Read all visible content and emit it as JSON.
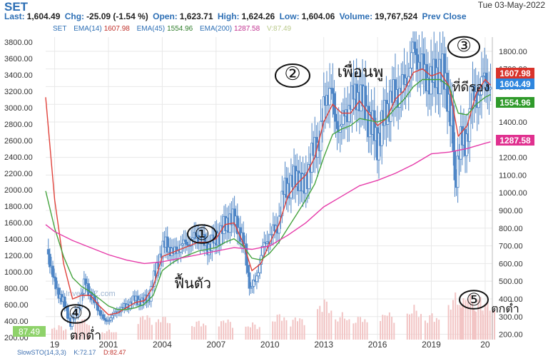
{
  "header": {
    "symbol": "SET",
    "date": "Tue 03-May-2022",
    "last_label": "Last:",
    "last_value": "1,604.49",
    "chg_label": "Chg:",
    "chg_value": "-25.09 (-1.54 %)",
    "open_label": "Open:",
    "open_value": "1,623.71",
    "high_label": "High:",
    "high_value": "1,624.26",
    "low_label": "Low:",
    "low_value": "1,604.06",
    "volume_label": "Volume:",
    "volume_value": "19,767,524",
    "prev_label": "Prev Close"
  },
  "legend": {
    "symbol": "SET",
    "ema14": "EMA(14)",
    "ema14_value": "1607.98",
    "ema45": "EMA(45)",
    "ema45_value": "1554.96",
    "ema200": "EMA(200)",
    "ema200_value": "1287.58",
    "v_value": "V:87.49"
  },
  "footer": {
    "slow": "SlowSTO(14,3,3)",
    "k": "K:72.17",
    "d": "D:82.47"
  },
  "watermark": "InvestorZ.com",
  "colors": {
    "candles": "#4f86c6",
    "ema14": "#e0413a",
    "ema45": "#45a33e",
    "ema200": "#e63ba9",
    "volume": "#f2c4c4",
    "grid": "#e8e8e8",
    "text": "#333333",
    "accent": "#2d6fb5",
    "ink": "#111111",
    "stoch_fill": "#88cc44"
  },
  "chart_data": {
    "type": "candlestick",
    "title": "SET",
    "left_axis": {
      "ticks": [
        3800,
        3600,
        3400,
        3200,
        3000,
        2800,
        2600,
        2400,
        2200,
        2000,
        1800,
        1600,
        1400,
        1200,
        1000,
        800,
        600,
        400,
        200
      ],
      "tick_labels": [
        "3800.00",
        "3600.00",
        "3400.00",
        "3200.00",
        "3000.00",
        "2800.00",
        "2600.00",
        "2400.00",
        "2200.00",
        "2000.00",
        "1800.00",
        "1600.00",
        "1400.00",
        "1200.00",
        "1000.00",
        "800.00",
        "600.00",
        "400.00",
        "200.00"
      ],
      "note": "EMA(45) scale"
    },
    "right_axis": {
      "ticks": [
        1800,
        1700,
        1600,
        1500,
        1400,
        1300,
        1200,
        1100,
        1000,
        900,
        800,
        700,
        600,
        500,
        400,
        300,
        200
      ],
      "tick_labels": [
        "1800.00",
        "1700.00",
        "1600.00",
        "1500.00",
        "1400.00",
        "1300.00",
        "1200.00",
        "1100.00",
        "1000.00",
        "900.00",
        "800.00",
        "700.00",
        "600.00",
        "500.00",
        "400.00",
        "300.00",
        "200.00"
      ],
      "range": [
        170,
        1880
      ]
    },
    "x_ticks": [
      "1998",
      "2001",
      "2004",
      "2007",
      "2010",
      "2013",
      "2016",
      "2019",
      "2022"
    ],
    "x_tick_labels": [
      "19",
      "2001",
      "2004",
      "2007",
      "2010",
      "2013",
      "2016",
      "2019",
      "20"
    ],
    "x_range": [
      1997.5,
      2022.4
    ],
    "price_badges": [
      {
        "label": "1607.98",
        "value": 1607.98,
        "series": "EMA(14)"
      },
      {
        "label": "1604.49",
        "value": 1604.49,
        "series": "Last"
      },
      {
        "label": "1554.96",
        "value": 1554.96,
        "series": "EMA(45)"
      },
      {
        "label": "1287.58",
        "value": 1287.58,
        "series": "EMA(200)"
      }
    ],
    "v_badge": "87.49",
    "price_path": [
      [
        1997.6,
        680
      ],
      [
        1998.0,
        480
      ],
      [
        1998.5,
        380
      ],
      [
        1998.9,
        260
      ],
      [
        1999.3,
        340
      ],
      [
        1999.7,
        500
      ],
      [
        2000.0,
        420
      ],
      [
        2000.4,
        350
      ],
      [
        2000.8,
        270
      ],
      [
        2001.2,
        300
      ],
      [
        2001.6,
        340
      ],
      [
        2002.0,
        360
      ],
      [
        2002.5,
        400
      ],
      [
        2002.9,
        380
      ],
      [
        2003.3,
        420
      ],
      [
        2003.8,
        620
      ],
      [
        2004.2,
        720
      ],
      [
        2004.6,
        650
      ],
      [
        2005.0,
        700
      ],
      [
        2005.5,
        720
      ],
      [
        2006.0,
        760
      ],
      [
        2006.5,
        690
      ],
      [
        2006.9,
        730
      ],
      [
        2007.3,
        780
      ],
      [
        2007.8,
        860
      ],
      [
        2008.2,
        820
      ],
      [
        2008.6,
        680
      ],
      [
        2008.9,
        450
      ],
      [
        2009.2,
        500
      ],
      [
        2009.6,
        680
      ],
      [
        2010.0,
        760
      ],
      [
        2010.4,
        800
      ],
      [
        2010.8,
        1020
      ],
      [
        2011.2,
        1050
      ],
      [
        2011.6,
        1100
      ],
      [
        2011.9,
        1010
      ],
      [
        2012.3,
        1200
      ],
      [
        2012.7,
        1280
      ],
      [
        2013.1,
        1520
      ],
      [
        2013.4,
        1620
      ],
      [
        2013.6,
        1400
      ],
      [
        2014.0,
        1380
      ],
      [
        2014.5,
        1520
      ],
      [
        2015.0,
        1560
      ],
      [
        2015.6,
        1400
      ],
      [
        2016.0,
        1280
      ],
      [
        2016.5,
        1470
      ],
      [
        2017.0,
        1560
      ],
      [
        2017.5,
        1600
      ],
      [
        2018.0,
        1800
      ],
      [
        2018.3,
        1760
      ],
      [
        2018.7,
        1650
      ],
      [
        2019.1,
        1640
      ],
      [
        2019.5,
        1700
      ],
      [
        2019.9,
        1580
      ],
      [
        2020.2,
        1350
      ],
      [
        2020.3,
        1000
      ],
      [
        2020.6,
        1320
      ],
      [
        2020.9,
        1250
      ],
      [
        2021.2,
        1500
      ],
      [
        2021.6,
        1560
      ],
      [
        2022.0,
        1650
      ],
      [
        2022.3,
        1604
      ]
    ],
    "series": [
      {
        "name": "EMA(14)",
        "points": [
          [
            1997.5,
            1540
          ],
          [
            1998.0,
            960
          ],
          [
            1998.5,
            600
          ],
          [
            1999.0,
            400
          ],
          [
            1999.5,
            420
          ],
          [
            2000.0,
            420
          ],
          [
            2000.5,
            360
          ],
          [
            2001.0,
            310
          ],
          [
            2001.5,
            320
          ],
          [
            2002.0,
            350
          ],
          [
            2002.5,
            380
          ],
          [
            2003.0,
            390
          ],
          [
            2003.5,
            470
          ],
          [
            2004.0,
            640
          ],
          [
            2004.5,
            660
          ],
          [
            2005.0,
            680
          ],
          [
            2005.5,
            700
          ],
          [
            2006.0,
            720
          ],
          [
            2006.5,
            720
          ],
          [
            2007.0,
            740
          ],
          [
            2007.5,
            820
          ],
          [
            2008.0,
            830
          ],
          [
            2008.5,
            720
          ],
          [
            2009.0,
            560
          ],
          [
            2009.5,
            600
          ],
          [
            2010.0,
            720
          ],
          [
            2010.5,
            820
          ],
          [
            2011.0,
            980
          ],
          [
            2011.5,
            1050
          ],
          [
            2012.0,
            1100
          ],
          [
            2012.5,
            1200
          ],
          [
            2013.0,
            1400
          ],
          [
            2013.5,
            1500
          ],
          [
            2014.0,
            1450
          ],
          [
            2014.5,
            1450
          ],
          [
            2015.0,
            1520
          ],
          [
            2015.5,
            1450
          ],
          [
            2016.0,
            1380
          ],
          [
            2016.5,
            1420
          ],
          [
            2017.0,
            1530
          ],
          [
            2017.5,
            1580
          ],
          [
            2018.0,
            1680
          ],
          [
            2018.5,
            1700
          ],
          [
            2019.0,
            1660
          ],
          [
            2019.5,
            1680
          ],
          [
            2020.0,
            1600
          ],
          [
            2020.5,
            1320
          ],
          [
            2021.0,
            1380
          ],
          [
            2021.5,
            1560
          ],
          [
            2022.0,
            1640
          ],
          [
            2022.3,
            1608
          ]
        ]
      },
      {
        "name": "EMA(45)",
        "points": [
          [
            1997.5,
            1010
          ],
          [
            1998.0,
            800
          ],
          [
            1998.5,
            640
          ],
          [
            1999.0,
            520
          ],
          [
            1999.5,
            470
          ],
          [
            2000.0,
            440
          ],
          [
            2000.5,
            400
          ],
          [
            2001.0,
            360
          ],
          [
            2001.5,
            340
          ],
          [
            2002.0,
            340
          ],
          [
            2002.5,
            350
          ],
          [
            2003.0,
            370
          ],
          [
            2003.5,
            420
          ],
          [
            2004.0,
            560
          ],
          [
            2004.5,
            600
          ],
          [
            2005.0,
            630
          ],
          [
            2005.5,
            650
          ],
          [
            2006.0,
            670
          ],
          [
            2006.5,
            680
          ],
          [
            2007.0,
            690
          ],
          [
            2007.5,
            720
          ],
          [
            2008.0,
            740
          ],
          [
            2008.5,
            700
          ],
          [
            2009.0,
            630
          ],
          [
            2009.5,
            620
          ],
          [
            2010.0,
            660
          ],
          [
            2010.5,
            720
          ],
          [
            2011.0,
            800
          ],
          [
            2011.5,
            880
          ],
          [
            2012.0,
            960
          ],
          [
            2012.5,
            1050
          ],
          [
            2013.0,
            1200
          ],
          [
            2013.5,
            1330
          ],
          [
            2014.0,
            1360
          ],
          [
            2014.5,
            1380
          ],
          [
            2015.0,
            1420
          ],
          [
            2015.5,
            1410
          ],
          [
            2016.0,
            1400
          ],
          [
            2016.5,
            1420
          ],
          [
            2017.0,
            1480
          ],
          [
            2017.5,
            1530
          ],
          [
            2018.0,
            1600
          ],
          [
            2018.5,
            1640
          ],
          [
            2019.0,
            1640
          ],
          [
            2019.5,
            1640
          ],
          [
            2020.0,
            1600
          ],
          [
            2020.5,
            1450
          ],
          [
            2021.0,
            1440
          ],
          [
            2021.5,
            1500
          ],
          [
            2022.0,
            1540
          ],
          [
            2022.3,
            1555
          ]
        ]
      },
      {
        "name": "EMA(200)",
        "points": [
          [
            1997.5,
            820
          ],
          [
            1998.0,
            780
          ],
          [
            1999.0,
            730
          ],
          [
            2000.0,
            690
          ],
          [
            2001.0,
            650
          ],
          [
            2002.0,
            620
          ],
          [
            2003.0,
            600
          ],
          [
            2004.0,
            610
          ],
          [
            2005.0,
            630
          ],
          [
            2006.0,
            650
          ],
          [
            2007.0,
            670
          ],
          [
            2008.0,
            690
          ],
          [
            2009.0,
            680
          ],
          [
            2010.0,
            700
          ],
          [
            2011.0,
            760
          ],
          [
            2012.0,
            830
          ],
          [
            2013.0,
            920
          ],
          [
            2014.0,
            980
          ],
          [
            2015.0,
            1040
          ],
          [
            2016.0,
            1070
          ],
          [
            2017.0,
            1110
          ],
          [
            2018.0,
            1160
          ],
          [
            2019.0,
            1220
          ],
          [
            2020.0,
            1230
          ],
          [
            2021.0,
            1250
          ],
          [
            2022.0,
            1280
          ],
          [
            2022.3,
            1288
          ]
        ]
      }
    ],
    "volume": [
      [
        1998.2,
        0.3
      ],
      [
        1999.5,
        0.45
      ],
      [
        2001.0,
        0.2
      ],
      [
        2003.0,
        0.55
      ],
      [
        2004.0,
        0.5
      ],
      [
        2006.0,
        0.4
      ],
      [
        2007.5,
        0.45
      ],
      [
        2009.0,
        0.35
      ],
      [
        2010.5,
        0.55
      ],
      [
        2011.5,
        0.5
      ],
      [
        2013.0,
        0.85
      ],
      [
        2014.0,
        0.55
      ],
      [
        2015.0,
        0.5
      ],
      [
        2016.5,
        0.6
      ],
      [
        2018.0,
        0.7
      ],
      [
        2019.0,
        0.55
      ],
      [
        2020.3,
        0.95
      ],
      [
        2021.0,
        1.0
      ],
      [
        2021.7,
        0.9
      ],
      [
        2022.1,
        0.8
      ]
    ]
  },
  "annotations": [
    {
      "text": "②",
      "note": "circled 2"
    },
    {
      "text": "เพื่อนพู",
      "note": "handwritten Thai"
    },
    {
      "text": "③",
      "note": "circled 3"
    },
    {
      "text": "ที่ดีรอง",
      "note": "handwritten Thai"
    },
    {
      "text": "①",
      "note": "circled 1"
    },
    {
      "text": "ฟื้นตัว",
      "note": "handwritten Thai"
    },
    {
      "text": "④",
      "note": "circled 4"
    },
    {
      "text": "ตกต่ำ",
      "note": "handwritten Thai"
    },
    {
      "text": "⑤",
      "note": "circled 5"
    },
    {
      "text": "ตกต่ำ",
      "note": "handwritten Thai right"
    }
  ]
}
